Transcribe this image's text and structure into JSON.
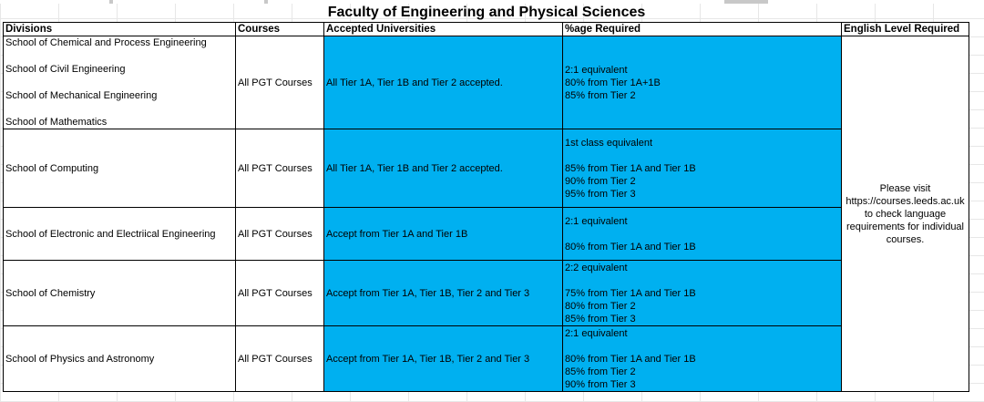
{
  "page_title": "Faculty of Engineering and Physical Sciences",
  "headers": {
    "divisions": "Divisions",
    "courses": "Courses",
    "accepted": "Accepted Universities",
    "percentage": "%age Required",
    "english": "English Level Required"
  },
  "english_note": "Please visit https://courses.leeds.ac.uk to check language requirements for individual courses.",
  "rows": [
    {
      "divisions": [
        "School of Chemical and Process Engineering",
        "School of Civil Engineering",
        "School of Mechanical Engineering",
        "School of Mathematics"
      ],
      "courses": "All PGT Courses",
      "accepted": "All Tier 1A, Tier 1B and Tier 2 accepted.",
      "percentage": [
        "2:1 equivalent",
        "80% from Tier 1A+1B",
        "85% from Tier 2"
      ]
    },
    {
      "divisions": [
        "School of Computing"
      ],
      "courses": "All PGT Courses",
      "accepted": "All Tier 1A, Tier 1B and Tier 2 accepted.",
      "percentage": [
        "1st class equivalent",
        "",
        "85% from Tier 1A and Tier 1B",
        "90% from Tier 2",
        "95% from Tier 3"
      ]
    },
    {
      "divisions": [
        "School of Electronic and Electriical Engineering"
      ],
      "courses": "All PGT Courses",
      "accepted": "Accept from Tier 1A and Tier 1B",
      "percentage": [
        "2:1 equivalent",
        "",
        "80% from Tier 1A and Tier 1B"
      ]
    },
    {
      "divisions": [
        "School of Chemistry"
      ],
      "courses": "All PGT Courses",
      "accepted": "Accept from Tier 1A, Tier 1B, Tier 2 and Tier 3",
      "percentage": [
        "2:2 equivalent",
        "",
        "75% from Tier 1A and Tier 1B",
        "80% from Tier 2",
        "85% from Tier 3"
      ]
    },
    {
      "divisions": [
        "School of Physics and Astronomy"
      ],
      "courses": "All PGT Courses",
      "accepted": "Accept from Tier 1A, Tier 1B, Tier 2 and Tier 3",
      "percentage": [
        "2:1 equivalent",
        "",
        "80% from Tier 1A and Tier 1B",
        "85% from Tier 2",
        "90% from Tier 3"
      ]
    }
  ],
  "colors": {
    "cell_highlight": "#00b0f0",
    "border": "#000000",
    "gridline": "#d4d4d4"
  }
}
